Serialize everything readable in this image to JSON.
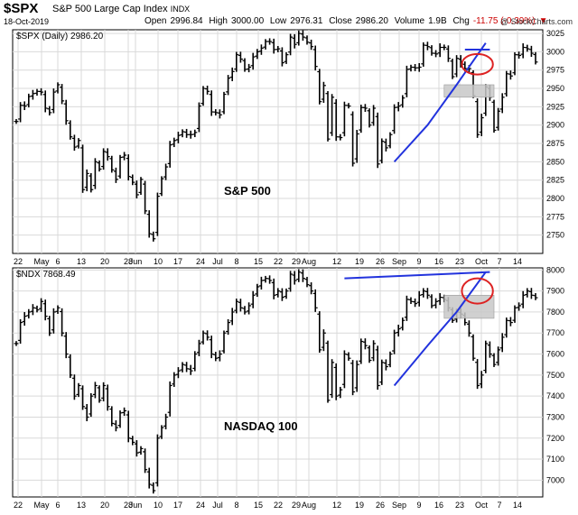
{
  "header": {
    "symbol": "$SPX",
    "name": "S&P 500 Large Cap Index",
    "exchange": "INDX",
    "date": "18-Oct-2019",
    "open_label": "Open",
    "open": "2996.84",
    "high_label": "High",
    "high": "3000.00",
    "low_label": "Low",
    "low": "2976.31",
    "close_label": "Close",
    "close": "2986.20",
    "volume_label": "Volume",
    "volume": "1.9B",
    "chg_label": "Chg",
    "chg": "-11.75 (-0.39%)",
    "watermark": "@ StockCharts.com"
  },
  "chart_data": [
    {
      "type": "ohlc",
      "legend": "$SPX (Daily) 2986.20",
      "annotation": "S&P 500",
      "ylim": [
        2725,
        3030
      ],
      "yticks": [
        2750,
        2775,
        2800,
        2825,
        2850,
        2875,
        2900,
        2925,
        2950,
        2975,
        3000,
        3025
      ],
      "x_tick_labels": [
        "22",
        "May",
        "6",
        "13",
        "20",
        "28",
        "Jun",
        "10",
        "17",
        "24",
        "Jul",
        "8",
        "15",
        "22",
        "29",
        "Aug",
        "12",
        "19",
        "26",
        "Sep",
        "9",
        "16",
        "23",
        "Oct",
        "7",
        "14"
      ],
      "close": [
        2905,
        2927,
        2926,
        2939,
        2943,
        2946,
        2945,
        2923,
        2917,
        2945,
        2955,
        2933,
        2906,
        2884,
        2870,
        2879,
        2812,
        2834,
        2812,
        2850,
        2840,
        2864,
        2857,
        2839,
        2826,
        2856,
        2859,
        2830,
        2822,
        2805,
        2826,
        2783,
        2752,
        2745,
        2803,
        2827,
        2843,
        2873,
        2879,
        2886,
        2891,
        2887,
        2887,
        2890,
        2926,
        2950,
        2946,
        2918,
        2917,
        2914,
        2942,
        2964,
        2973,
        2996,
        2990,
        2976,
        2979,
        2993,
        3000,
        3005,
        3014,
        3014,
        3003,
        3004,
        2985,
        2996,
        3020,
        3010,
        3025,
        3020,
        3013,
        3007,
        2980,
        2932,
        2954,
        2881,
        2938,
        2884,
        2883,
        2927,
        2926,
        2848,
        2888,
        2924,
        2923,
        2900,
        2923,
        2847,
        2878,
        2869,
        2887,
        2924,
        2926,
        2937,
        2976,
        2979,
        2978,
        2979,
        3009,
        3007,
        2998,
        2997,
        3006,
        3006,
        2991,
        2966,
        2991,
        2984,
        2977,
        2977,
        2940,
        2887,
        2910,
        2952,
        2938,
        2893,
        2919,
        2938,
        2970,
        2967,
        2996,
        2995,
        3006,
        3004,
        2998,
        2986
      ],
      "annotations": {
        "trend_line": [
          [
            91,
            2850
          ],
          [
            99,
            2900
          ],
          [
            106,
            2955
          ],
          [
            113,
            3012
          ]
        ],
        "resistance_line": [
          [
            108,
            3003
          ],
          [
            114,
            3003
          ]
        ],
        "support_box": {
          "x": [
            103,
            115
          ],
          "y": [
            2938,
            2955
          ]
        },
        "circle": {
          "center": [
            111,
            2983
          ],
          "radius_x": 2,
          "radius_y": 14
        }
      }
    },
    {
      "type": "ohlc",
      "legend": "$NDX 7868.49",
      "annotation": "NASDAQ 100",
      "ylim": [
        6920,
        8010
      ],
      "yticks": [
        7000,
        7100,
        7200,
        7300,
        7400,
        7500,
        7600,
        7700,
        7800,
        7900,
        8000
      ],
      "x_tick_labels": [
        "22",
        "May",
        "6",
        "13",
        "20",
        "28",
        "Jun",
        "10",
        "17",
        "24",
        "Jul",
        "8",
        "15",
        "22",
        "29",
        "Aug",
        "12",
        "19",
        "26",
        "Sep",
        "9",
        "16",
        "23",
        "Oct",
        "7",
        "14"
      ],
      "close": [
        7650,
        7750,
        7780,
        7800,
        7820,
        7810,
        7850,
        7780,
        7700,
        7800,
        7820,
        7700,
        7600,
        7500,
        7400,
        7450,
        7350,
        7300,
        7400,
        7450,
        7380,
        7450,
        7350,
        7270,
        7250,
        7320,
        7330,
        7200,
        7180,
        7130,
        7150,
        7050,
        6980,
        6950,
        7200,
        7250,
        7300,
        7450,
        7500,
        7520,
        7550,
        7530,
        7520,
        7600,
        7650,
        7700,
        7680,
        7600,
        7580,
        7600,
        7700,
        7750,
        7800,
        7850,
        7820,
        7800,
        7830,
        7880,
        7920,
        7950,
        7960,
        7950,
        7880,
        7900,
        7870,
        7900,
        7980,
        7950,
        7990,
        7960,
        7930,
        7900,
        7820,
        7620,
        7700,
        7380,
        7560,
        7400,
        7430,
        7600,
        7580,
        7420,
        7550,
        7660,
        7640,
        7570,
        7650,
        7450,
        7560,
        7540,
        7600,
        7700,
        7720,
        7760,
        7860,
        7850,
        7840,
        7880,
        7900,
        7880,
        7830,
        7850,
        7870,
        7860,
        7820,
        7760,
        7800,
        7790,
        7750,
        7700,
        7580,
        7450,
        7500,
        7650,
        7600,
        7550,
        7620,
        7680,
        7760,
        7750,
        7820,
        7830,
        7880,
        7900,
        7880,
        7868
      ],
      "annotations": {
        "trend_line": [
          [
            91,
            7450
          ],
          [
            99,
            7640
          ],
          [
            106,
            7800
          ],
          [
            113,
            7990
          ]
        ],
        "resistance_line": [
          [
            79,
            7960
          ],
          [
            114,
            7990
          ]
        ],
        "support_box": {
          "x": [
            103,
            115
          ],
          "y": [
            7770,
            7880
          ]
        },
        "circle": {
          "center": [
            111,
            7900
          ],
          "radius_x": 2,
          "radius_y": 60
        }
      }
    }
  ],
  "colors": {
    "bars": "#000000",
    "trend_line": "#2233dd",
    "circle": "#dd2222",
    "support_box": "#c8c8c8",
    "grid": "#d9d9d9",
    "chg_negative": "#cc0000"
  }
}
